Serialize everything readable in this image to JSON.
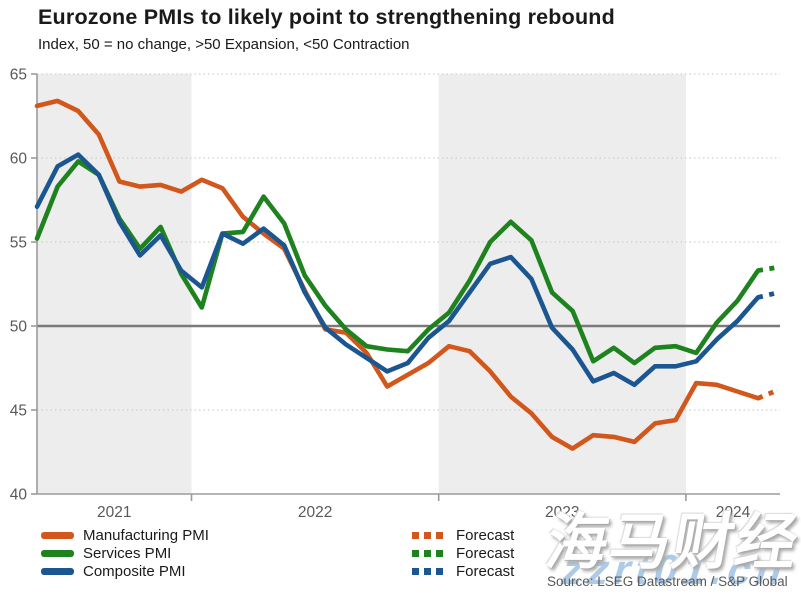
{
  "chart_data": {
    "type": "line",
    "title": "Eurozone PMIs to likely point to strengthening rebound",
    "subtitle": "Index, 50 = no change, >50 Expansion, <50 Contraction",
    "source": "Source: LSEG Datastream / S&P Global",
    "ylim": [
      40,
      65
    ],
    "yticks": [
      40,
      45,
      50,
      55,
      60,
      65
    ],
    "reference_line": 50,
    "grid": "dotted-horizontal",
    "legend_position": "bottom",
    "year_labels": [
      "2021",
      "2022",
      "2023",
      "2024"
    ],
    "shaded_years": [
      "2021",
      "2023"
    ],
    "x_months": [
      "May 2021",
      "Jun 2021",
      "Jul 2021",
      "Aug 2021",
      "Sep 2021",
      "Oct 2021",
      "Nov 2021",
      "Dec 2021",
      "Jan 2022",
      "Feb 2022",
      "Mar 2022",
      "Apr 2022",
      "May 2022",
      "Jun 2022",
      "Jul 2022",
      "Aug 2022",
      "Sep 2022",
      "Oct 2022",
      "Nov 2022",
      "Dec 2022",
      "Jan 2023",
      "Feb 2023",
      "Mar 2023",
      "Apr 2023",
      "May 2023",
      "Jun 2023",
      "Jul 2023",
      "Aug 2023",
      "Sep 2023",
      "Oct 2023",
      "Nov 2023",
      "Dec 2023",
      "Jan 2024",
      "Feb 2024",
      "Mar 2024",
      "Apr 2024"
    ],
    "forecast_month": "May 2024",
    "series": [
      {
        "name": "Manufacturing PMI",
        "forecast_label": "Forecast",
        "color": "#d2571c",
        "values": [
          63.1,
          63.4,
          62.8,
          61.4,
          58.6,
          58.3,
          58.4,
          58.0,
          58.7,
          58.2,
          56.5,
          55.5,
          54.6,
          52.1,
          49.8,
          49.6,
          48.4,
          46.4,
          47.1,
          47.8,
          48.8,
          48.5,
          47.3,
          45.8,
          44.8,
          43.4,
          42.7,
          43.5,
          43.4,
          43.1,
          44.2,
          44.4,
          46.6,
          46.5,
          46.1,
          45.7
        ],
        "forecast": 46.2
      },
      {
        "name": "Services PMI",
        "forecast_label": "Forecast",
        "color": "#1e821e",
        "values": [
          55.2,
          58.3,
          59.8,
          59.0,
          56.4,
          54.6,
          55.9,
          53.1,
          51.1,
          55.5,
          55.6,
          57.7,
          56.1,
          53.0,
          51.2,
          49.8,
          48.8,
          48.6,
          48.5,
          49.8,
          50.8,
          52.7,
          55.0,
          56.2,
          55.1,
          52.0,
          50.9,
          47.9,
          48.7,
          47.8,
          48.7,
          48.8,
          48.4,
          50.2,
          51.5,
          53.3
        ],
        "forecast": 53.5
      },
      {
        "name": "Composite PMI",
        "forecast_label": "Forecast",
        "color": "#1b5691",
        "values": [
          57.1,
          59.5,
          60.2,
          59.0,
          56.2,
          54.2,
          55.4,
          53.3,
          52.3,
          55.5,
          54.9,
          55.8,
          54.8,
          52.0,
          49.9,
          48.9,
          48.1,
          47.3,
          47.8,
          49.3,
          50.3,
          52.0,
          53.7,
          54.1,
          52.8,
          49.9,
          48.6,
          46.7,
          47.2,
          46.5,
          47.6,
          47.6,
          47.9,
          49.2,
          50.3,
          51.7
        ],
        "forecast": 52.0
      }
    ],
    "colors": {
      "band": "#ededed",
      "gridline": "#cfcfcf",
      "reference_line": "#7a7a7a",
      "axis": "#9b9b9b",
      "tick_label": "#595959"
    }
  },
  "watermark": {
    "cn_text": "海马财经",
    "url_text": "zzrt01.cn",
    "url_color": "#9fc3e4"
  }
}
